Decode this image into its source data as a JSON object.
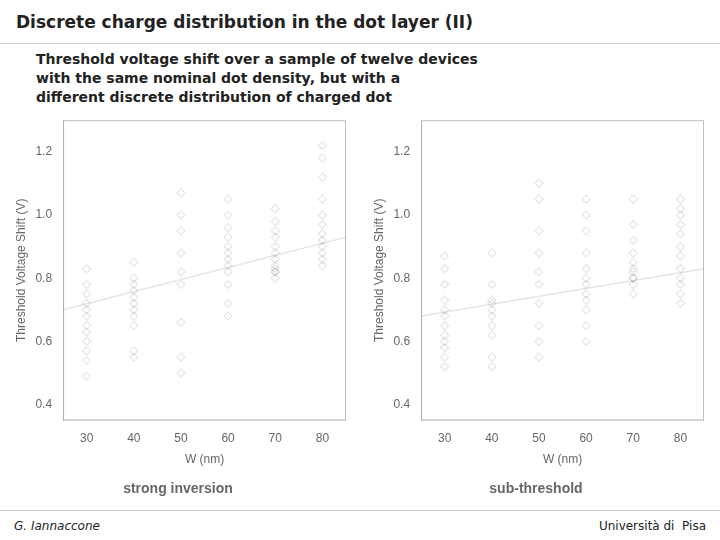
{
  "title": "Discrete charge distribution in the dot layer (II)",
  "subtitle": [
    "Threshold voltage shift over a sample of twelve devices",
    "with the same nominal dot density, but with a",
    "different discrete distribution of charged dot"
  ],
  "annotations": [
    "G. Iannaccone",
    "Università di  Pisa"
  ],
  "chart_data": [
    {
      "type": "scatter",
      "title": "strong inversion",
      "xlabel": "W (nm)",
      "ylabel": "Threshold Voltage Shift (V)",
      "xlim": [
        25,
        85
      ],
      "ylim": [
        0.35,
        1.3
      ],
      "xticks": [
        30,
        40,
        50,
        60,
        70,
        80
      ],
      "yticks": [
        0.4,
        0.6,
        0.8,
        {
          "value": 1.0,
          "label": "1.0"
        },
        1.2
      ],
      "grid": false,
      "series": [
        {
          "type": "scatter",
          "marker": "diamond",
          "x": [
            30,
            30,
            30,
            30,
            30,
            30,
            30,
            30,
            30,
            30,
            30,
            30,
            40,
            40,
            40,
            40,
            40,
            40,
            40,
            40,
            40,
            40,
            40,
            50,
            50,
            50,
            50,
            50,
            50,
            50,
            50,
            50,
            60,
            60,
            60,
            60,
            60,
            60,
            60,
            60,
            60,
            60,
            60,
            60,
            70,
            70,
            70,
            70,
            70,
            70,
            70,
            70,
            70,
            70,
            70,
            70,
            80,
            80,
            80,
            80,
            80,
            80,
            80,
            80,
            80,
            80,
            80,
            80
          ],
          "values": [
            0.83,
            0.78,
            0.75,
            0.72,
            0.7,
            0.68,
            0.65,
            0.63,
            0.6,
            0.57,
            0.54,
            0.49,
            0.85,
            0.8,
            0.78,
            0.76,
            0.74,
            0.72,
            0.7,
            0.68,
            0.65,
            0.57,
            0.55,
            1.07,
            1.0,
            0.95,
            0.88,
            0.82,
            0.78,
            0.66,
            0.55,
            0.5,
            1.05,
            1.0,
            0.96,
            0.93,
            0.9,
            0.88,
            0.86,
            0.84,
            0.82,
            0.78,
            0.72,
            0.68,
            1.02,
            0.98,
            0.95,
            0.93,
            0.9,
            0.88,
            0.86,
            0.84,
            0.83,
            0.82,
            0.82,
            0.8,
            1.22,
            1.18,
            1.12,
            1.05,
            1.0,
            0.97,
            0.94,
            0.92,
            0.9,
            0.88,
            0.86,
            0.84
          ]
        },
        {
          "type": "line",
          "line_style": "solid",
          "x": [
            25,
            85
          ],
          "values": [
            0.7,
            0.93
          ]
        }
      ]
    },
    {
      "type": "scatter",
      "title": "sub-threshold",
      "xlabel": "W (nm)",
      "ylabel": "Threshold Voltage Shift (V)",
      "xlim": [
        25,
        85
      ],
      "ylim": [
        0.35,
        1.3
      ],
      "xticks": [
        30,
        40,
        50,
        60,
        70,
        80
      ],
      "yticks": [
        0.4,
        0.6,
        0.8,
        {
          "value": 1.0,
          "label": "1.0"
        },
        1.2
      ],
      "grid": false,
      "series": [
        {
          "type": "scatter",
          "marker": "diamond",
          "x": [
            30,
            30,
            30,
            30,
            30,
            30,
            30,
            30,
            30,
            30,
            30,
            30,
            40,
            40,
            40,
            40,
            40,
            40,
            40,
            40,
            40,
            40,
            50,
            50,
            50,
            50,
            50,
            50,
            50,
            50,
            50,
            50,
            60,
            60,
            60,
            60,
            60,
            60,
            60,
            60,
            60,
            60,
            60,
            60,
            70,
            70,
            70,
            70,
            70,
            70,
            70,
            70,
            70,
            70,
            70,
            80,
            80,
            80,
            80,
            80,
            80,
            80,
            80,
            80,
            80,
            80,
            80
          ],
          "values": [
            0.87,
            0.83,
            0.78,
            0.73,
            0.7,
            0.68,
            0.65,
            0.62,
            0.6,
            0.58,
            0.55,
            0.52,
            0.88,
            0.78,
            0.73,
            0.72,
            0.7,
            0.68,
            0.65,
            0.62,
            0.55,
            0.52,
            1.1,
            1.05,
            0.95,
            0.88,
            0.82,
            0.78,
            0.72,
            0.65,
            0.6,
            0.55,
            1.05,
            1.0,
            0.95,
            0.88,
            0.83,
            0.8,
            0.78,
            0.75,
            0.73,
            0.7,
            0.65,
            0.6,
            1.05,
            0.97,
            0.92,
            0.88,
            0.85,
            0.83,
            0.82,
            0.8,
            0.8,
            0.78,
            0.75,
            1.05,
            1.02,
            1.0,
            0.97,
            0.94,
            0.9,
            0.87,
            0.83,
            0.8,
            0.78,
            0.75,
            0.72
          ]
        },
        {
          "type": "line",
          "line_style": "solid",
          "x": [
            25,
            85
          ],
          "values": [
            0.68,
            0.83
          ]
        }
      ]
    }
  ]
}
